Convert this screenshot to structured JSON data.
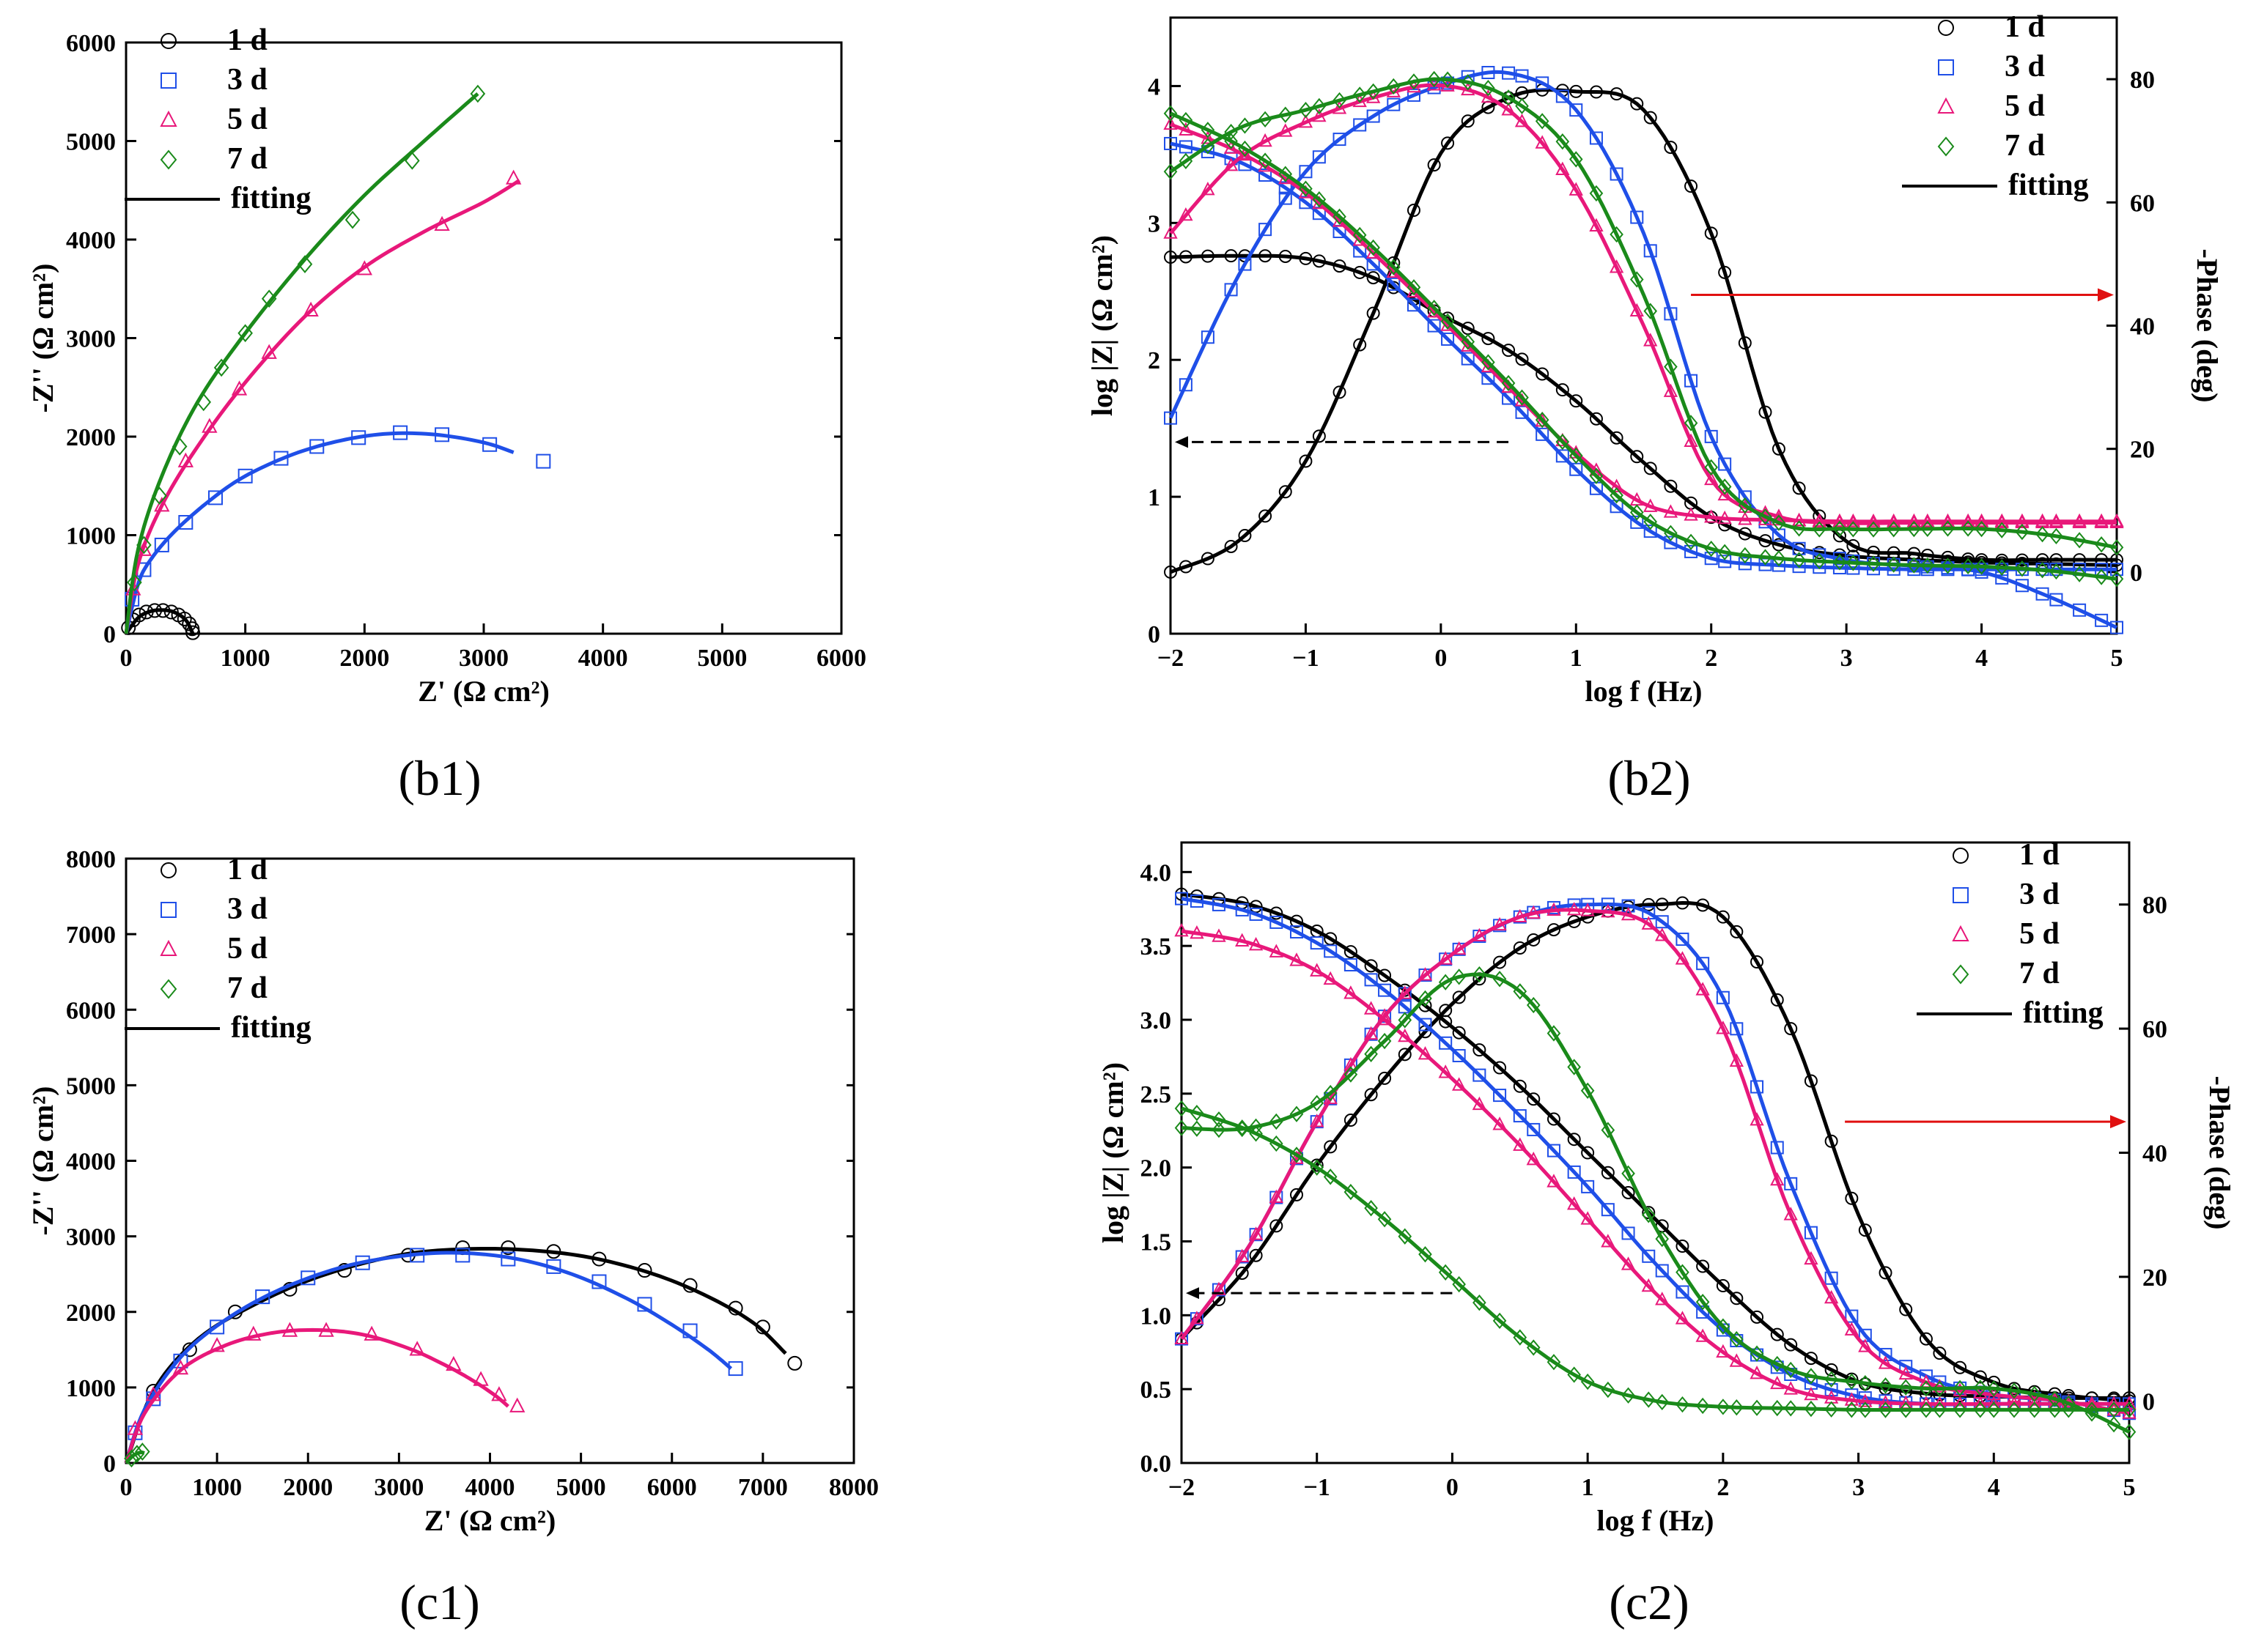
{
  "colors": {
    "series_1d": "#000000",
    "series_3d": "#1f4fe8",
    "series_5d": "#e8187a",
    "series_7d": "#1a8a1a",
    "arrow_red": "#e01010"
  },
  "chart_data": [
    {
      "id": "b1",
      "type": "scatter",
      "panel_label": "(b1)",
      "xlabel": "Z' (Ω cm²)",
      "ylabel": "-Z'' (Ω cm²)",
      "xlim": [
        0,
        6000
      ],
      "ylim": [
        0,
        6000
      ],
      "xticks": [
        "0",
        "1000",
        "2000",
        "3000",
        "4000",
        "5000",
        "6000"
      ],
      "yticks": [
        "0",
        "1000",
        "2000",
        "3000",
        "4000",
        "5000",
        "6000"
      ],
      "legend": {
        "labels": [
          "1 d",
          "3 d",
          "5 d",
          "7 d",
          "fitting"
        ],
        "position": "top-left"
      },
      "series": [
        {
          "name": "1 d",
          "marker": "circle",
          "color_key": "series_1d",
          "x": [
            20,
            60,
            110,
            170,
            240,
            310,
            380,
            440,
            490,
            530,
            555,
            560
          ],
          "y": [
            60,
            140,
            190,
            220,
            235,
            235,
            220,
            190,
            150,
            100,
            50,
            10
          ],
          "fit_x": [
            0,
            100,
            200,
            300,
            400,
            500,
            560
          ],
          "fit_y": [
            0,
            160,
            225,
            240,
            220,
            140,
            0
          ]
        },
        {
          "name": "3 d",
          "marker": "square",
          "color_key": "series_3d",
          "x": [
            50,
            150,
            300,
            500,
            750,
            1000,
            1300,
            1600,
            1950,
            2300,
            2650,
            3050,
            3500
          ],
          "y": [
            350,
            650,
            900,
            1130,
            1380,
            1600,
            1780,
            1900,
            1990,
            2040,
            2020,
            1920,
            1750
          ],
          "fit_x": [
            0,
            100,
            200,
            400,
            700,
            1000,
            1400,
            1800,
            2200,
            2600,
            3000,
            3250
          ],
          "fit_y": [
            0,
            500,
            740,
            1030,
            1350,
            1600,
            1820,
            1960,
            2030,
            2020,
            1940,
            1840
          ]
        },
        {
          "name": "5 d",
          "marker": "triangle",
          "color_key": "series_5d",
          "x": [
            60,
            150,
            300,
            500,
            700,
            950,
            1200,
            1550,
            2000,
            2650,
            3250
          ],
          "y": [
            450,
            850,
            1300,
            1750,
            2100,
            2480,
            2850,
            3280,
            3700,
            4150,
            4620
          ],
          "fit_x": [
            0,
            100,
            300,
            600,
            1000,
            1500,
            2000,
            2500,
            3000,
            3300
          ],
          "fit_y": [
            0,
            700,
            1300,
            1900,
            2550,
            3220,
            3720,
            4080,
            4380,
            4600
          ]
        },
        {
          "name": "7 d",
          "marker": "diamond",
          "color_key": "series_7d",
          "x": [
            70,
            150,
            280,
            450,
            650,
            800,
            1000,
            1200,
            1500,
            1900,
            2400,
            2950
          ],
          "y": [
            520,
            900,
            1400,
            1900,
            2350,
            2700,
            3050,
            3400,
            3750,
            4200,
            4800,
            5480
          ],
          "fit_x": [
            0,
            100,
            300,
            600,
            1000,
            1500,
            2000,
            2500,
            2950
          ],
          "fit_y": [
            0,
            850,
            1600,
            2350,
            3050,
            3800,
            4450,
            5000,
            5480
          ]
        }
      ]
    },
    {
      "id": "b2",
      "type": "line",
      "panel_label": "(b2)",
      "xlabel": "log f (Hz)",
      "ylabel": "log |Z| (Ω cm²)",
      "y2label": "-Phase (deg)",
      "xlim": [
        -2,
        5
      ],
      "ylim": [
        0,
        4.5
      ],
      "y2lim": [
        -10,
        90
      ],
      "xticks": [
        "−2",
        "−1",
        "0",
        "1",
        "2",
        "3",
        "4",
        "5"
      ],
      "yticks": [
        "0",
        "1",
        "2",
        "3",
        "4"
      ],
      "y2ticks": [
        "0",
        "20",
        "40",
        "60",
        "80"
      ],
      "legend": {
        "labels": [
          "1 d",
          "3 d",
          "5 d",
          "7 d",
          "fitting"
        ],
        "position": "top-right"
      },
      "series": [
        {
          "name": "1 d",
          "marker": "circle",
          "color_key": "series_1d",
          "x": [
            -2,
            -1.5,
            -1,
            -0.5,
            0,
            0.5,
            1,
            1.5,
            2,
            2.5,
            3,
            3.5,
            4,
            4.5,
            5
          ],
          "logZ": [
            2.75,
            2.76,
            2.74,
            2.6,
            2.33,
            2.07,
            1.7,
            1.25,
            0.85,
            0.65,
            0.57,
            0.54,
            0.52,
            0.51,
            0.5
          ],
          "phase": [
            0,
            5,
            18,
            42,
            68,
            77,
            78,
            75,
            55,
            20,
            5,
            3,
            2,
            2,
            2
          ]
        },
        {
          "name": "3 d",
          "marker": "square",
          "color_key": "series_3d",
          "x": [
            -2,
            -1.5,
            -1,
            -0.5,
            0,
            0.5,
            1,
            1.5,
            2,
            2.5,
            3,
            3.5,
            4,
            4.5,
            5
          ],
          "logZ": [
            3.58,
            3.45,
            3.15,
            2.7,
            2.2,
            1.72,
            1.2,
            0.78,
            0.55,
            0.5,
            0.48,
            0.47,
            0.47,
            0.47,
            0.47
          ],
          "phase": [
            25,
            48,
            65,
            74,
            79,
            81,
            75,
            55,
            22,
            6,
            2,
            1,
            0,
            -4,
            -9
          ]
        },
        {
          "name": "5 d",
          "marker": "triangle",
          "color_key": "series_5d",
          "x": [
            -2,
            -1.5,
            -1,
            -0.5,
            0,
            0.5,
            1,
            1.5,
            2,
            2.5,
            3,
            3.5,
            4,
            4.5,
            5
          ],
          "logZ": [
            3.72,
            3.52,
            3.22,
            2.78,
            2.3,
            1.8,
            1.32,
            0.95,
            0.85,
            0.83,
            0.82,
            0.82,
            0.82,
            0.82,
            0.82
          ],
          "phase": [
            55,
            67,
            73,
            77,
            79,
            75,
            62,
            40,
            15,
            9,
            8,
            8,
            8,
            8,
            8
          ]
        },
        {
          "name": "7 d",
          "marker": "diamond",
          "color_key": "series_7d",
          "x": [
            -2,
            -1.5,
            -1,
            -0.5,
            0,
            0.5,
            1,
            1.5,
            2,
            2.5,
            3,
            3.5,
            4,
            4.5,
            5
          ],
          "logZ": [
            3.8,
            3.57,
            3.25,
            2.82,
            2.33,
            1.83,
            1.3,
            0.85,
            0.62,
            0.55,
            0.52,
            0.5,
            0.49,
            0.46,
            0.4
          ],
          "phase": [
            65,
            72,
            75,
            78,
            80,
            77,
            67,
            45,
            17,
            8,
            7,
            7,
            7,
            6,
            4
          ]
        }
      ]
    },
    {
      "id": "c1",
      "type": "scatter",
      "panel_label": "(c1)",
      "xlabel": "Z' (Ω cm²)",
      "ylabel": "-Z'' (Ω cm²)",
      "xlim": [
        0,
        8000
      ],
      "ylim": [
        0,
        8000
      ],
      "xticks": [
        "0",
        "1000",
        "2000",
        "3000",
        "4000",
        "5000",
        "6000",
        "7000",
        "8000"
      ],
      "yticks": [
        "0",
        "1000",
        "2000",
        "3000",
        "4000",
        "5000",
        "6000",
        "7000",
        "8000"
      ],
      "legend": {
        "labels": [
          "1 d",
          "3 d",
          "5 d",
          "7 d",
          "fitting"
        ],
        "position": "top-left"
      },
      "series": [
        {
          "name": "1 d",
          "marker": "circle",
          "color_key": "series_1d",
          "x": [
            300,
            700,
            1200,
            1800,
            2400,
            3100,
            3700,
            4200,
            4700,
            5200,
            5700,
            6200,
            6700,
            7000,
            7350
          ],
          "y": [
            950,
            1500,
            2000,
            2300,
            2550,
            2750,
            2850,
            2850,
            2800,
            2700,
            2550,
            2350,
            2050,
            1800,
            1320
          ],
          "fit_x": [
            0,
            300,
            800,
            1500,
            2200,
            3000,
            3700,
            4400,
            5100,
            5800,
            6400,
            6900,
            7250
          ],
          "fit_y": [
            0,
            950,
            1650,
            2150,
            2500,
            2750,
            2830,
            2820,
            2720,
            2500,
            2200,
            1850,
            1450
          ]
        },
        {
          "name": "3 d",
          "marker": "square",
          "color_key": "series_3d",
          "x": [
            100,
            300,
            600,
            1000,
            1500,
            2000,
            2600,
            3200,
            3700,
            4200,
            4700,
            5200,
            5700,
            6200,
            6700
          ],
          "y": [
            400,
            850,
            1350,
            1800,
            2200,
            2450,
            2650,
            2750,
            2750,
            2700,
            2600,
            2400,
            2100,
            1750,
            1250
          ],
          "fit_x": [
            0,
            200,
            600,
            1100,
            1700,
            2400,
            3100,
            3700,
            4300,
            4900,
            5500,
            6000,
            6400,
            6650
          ],
          "fit_y": [
            0,
            700,
            1400,
            1900,
            2300,
            2600,
            2750,
            2780,
            2700,
            2500,
            2180,
            1830,
            1500,
            1250
          ]
        },
        {
          "name": "5 d",
          "marker": "triangle",
          "color_key": "series_5d",
          "x": [
            100,
            300,
            600,
            1000,
            1400,
            1800,
            2200,
            2700,
            3200,
            3600,
            3900,
            4100,
            4300
          ],
          "y": [
            450,
            900,
            1250,
            1550,
            1700,
            1750,
            1750,
            1700,
            1500,
            1300,
            1100,
            900,
            750
          ],
          "fit_x": [
            0,
            200,
            600,
            1100,
            1600,
            2100,
            2600,
            3100,
            3500,
            3800,
            4050,
            4200
          ],
          "fit_y": [
            0,
            650,
            1230,
            1560,
            1720,
            1760,
            1700,
            1520,
            1300,
            1100,
            900,
            750
          ]
        },
        {
          "name": "7 d",
          "marker": "diamond",
          "color_key": "series_7d",
          "x": [
            60,
            120,
            180
          ],
          "y": [
            60,
            120,
            150
          ],
          "fit_x": [
            0,
            80,
            160,
            200
          ],
          "fit_y": [
            0,
            100,
            140,
            130
          ]
        }
      ]
    },
    {
      "id": "c2",
      "type": "line",
      "panel_label": "(c2)",
      "xlabel": "log f (Hz)",
      "ylabel": "log |Z| (Ω cm²)",
      "y2label": "-Phase (deg)",
      "xlim": [
        -2,
        5
      ],
      "ylim": [
        0,
        4.2
      ],
      "y2lim": [
        -10,
        90
      ],
      "xticks": [
        "−2",
        "−1",
        "0",
        "1",
        "2",
        "3",
        "4",
        "5"
      ],
      "yticks": [
        "0.0",
        "0.5",
        "1.0",
        "1.5",
        "2.0",
        "2.5",
        "3.0",
        "3.5",
        "4.0"
      ],
      "y2ticks": [
        "0",
        "20",
        "40",
        "60",
        "80"
      ],
      "legend": {
        "labels": [
          "1 d",
          "3 d",
          "5 d",
          "7 d",
          "fitting"
        ],
        "position": "top-right"
      },
      "series": [
        {
          "name": "1 d",
          "marker": "circle",
          "color_key": "series_1d",
          "x": [
            -2,
            -1.5,
            -1,
            -0.5,
            0,
            0.5,
            1,
            1.5,
            2,
            2.5,
            3,
            3.5,
            4,
            4.5,
            5
          ],
          "logZ": [
            3.85,
            3.78,
            3.6,
            3.3,
            2.95,
            2.55,
            2.1,
            1.65,
            1.2,
            0.8,
            0.55,
            0.47,
            0.45,
            0.44,
            0.44
          ],
          "phase": [
            10,
            22,
            38,
            52,
            64,
            73,
            78,
            80,
            78,
            60,
            30,
            10,
            3,
            1,
            0
          ]
        },
        {
          "name": "3 d",
          "marker": "square",
          "color_key": "series_3d",
          "x": [
            -2,
            -1.5,
            -1,
            -0.5,
            0,
            0.5,
            1,
            1.5,
            2,
            2.5,
            3,
            3.5,
            4,
            4.5,
            5
          ],
          "logZ": [
            3.82,
            3.73,
            3.52,
            3.2,
            2.8,
            2.35,
            1.87,
            1.35,
            0.9,
            0.6,
            0.45,
            0.4,
            0.4,
            0.4,
            0.4
          ],
          "phase": [
            10,
            25,
            45,
            62,
            72,
            78,
            80,
            78,
            65,
            35,
            12,
            4,
            1,
            0,
            -2
          ]
        },
        {
          "name": "5 d",
          "marker": "triangle",
          "color_key": "series_5d",
          "x": [
            -2,
            -1.5,
            -1,
            -0.5,
            0,
            0.5,
            1,
            1.5,
            2,
            2.5,
            3,
            3.5,
            4,
            4.5,
            5
          ],
          "logZ": [
            3.6,
            3.52,
            3.33,
            3.0,
            2.6,
            2.15,
            1.65,
            1.15,
            0.75,
            0.5,
            0.42,
            0.4,
            0.4,
            0.4,
            0.4
          ],
          "phase": [
            10,
            25,
            45,
            62,
            72,
            78,
            79,
            76,
            60,
            30,
            10,
            3,
            1,
            0,
            -2
          ]
        },
        {
          "name": "7 d",
          "marker": "diamond",
          "color_key": "series_7d",
          "x": [
            -2,
            -1.5,
            -1,
            -0.5,
            0,
            0.5,
            1,
            1.5,
            2,
            2.5,
            3,
            3.5,
            4,
            4.5,
            5
          ],
          "logZ": [
            2.4,
            2.25,
            2.0,
            1.65,
            1.25,
            0.85,
            0.55,
            0.42,
            0.38,
            0.37,
            0.36,
            0.36,
            0.36,
            0.36,
            0.36
          ],
          "phase": [
            44,
            44,
            48,
            58,
            68,
            66,
            50,
            28,
            12,
            5,
            3,
            2,
            2,
            0,
            -5
          ]
        }
      ]
    }
  ]
}
